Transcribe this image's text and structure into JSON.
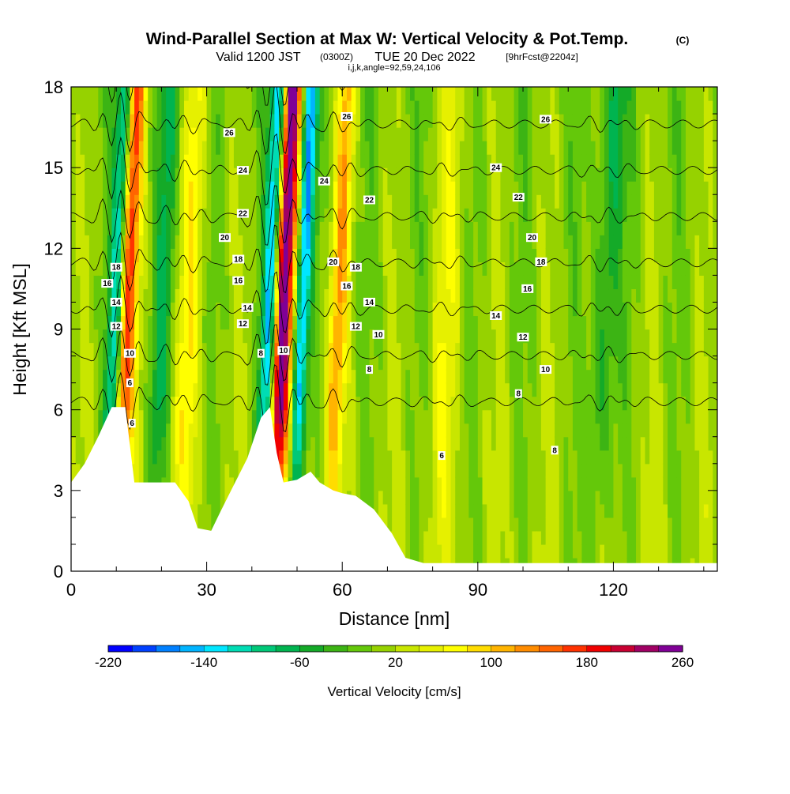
{
  "chart_data": {
    "type": "heatmap",
    "title": "Wind-Parallel Section at Max W: Vertical Velocity & Pot.Temp.",
    "title_suffix": "(C)",
    "subtitle_valid": "Valid 1200 JST",
    "subtitle_utc": "(0300Z)",
    "subtitle_date": "TUE 20 Dec 2022",
    "subtitle_fcst": "[9hrFcst@2204z]",
    "subtitle_index": "i,j,k,angle=92,59,24,106",
    "xlabel": "Distance [nm]",
    "ylabel": "Height [Kft MSL]",
    "xlim": [
      0,
      143
    ],
    "ylim": [
      0,
      18
    ],
    "x_ticks": [
      "0",
      "30",
      "60",
      "90",
      "120"
    ],
    "x_tick_values": [
      0,
      30,
      60,
      90,
      120
    ],
    "y_ticks": [
      "0",
      "3",
      "6",
      "9",
      "12",
      "15",
      "18"
    ],
    "y_tick_values": [
      0,
      3,
      6,
      9,
      12,
      15,
      18
    ],
    "colorbar": {
      "label": "Vertical Velocity [cm/s]",
      "min": -220,
      "max": 260,
      "step": 20,
      "tick_labels": [
        "-220",
        "-140",
        "-60",
        "20",
        "100",
        "180",
        "260"
      ],
      "tick_values": [
        -220,
        -140,
        -60,
        20,
        100,
        180,
        260
      ],
      "colors": [
        "#0000ff",
        "#0040ff",
        "#0080ff",
        "#00b4ff",
        "#00e6ff",
        "#00dcb4",
        "#00c878",
        "#00b450",
        "#14aa28",
        "#3cb414",
        "#64c80a",
        "#96d200",
        "#c8e600",
        "#e6f000",
        "#ffff00",
        "#ffdc00",
        "#ffb400",
        "#ff8c00",
        "#ff6400",
        "#ff3200",
        "#f00000",
        "#c80032",
        "#a00064",
        "#800096"
      ]
    },
    "terrain_kft": [
      [
        0,
        3.3
      ],
      [
        3,
        4
      ],
      [
        6,
        5
      ],
      [
        9,
        6.1
      ],
      [
        12,
        6.1
      ],
      [
        14,
        3.3
      ],
      [
        16,
        3.3
      ],
      [
        20,
        3.3
      ],
      [
        23,
        3.3
      ],
      [
        26,
        2.6
      ],
      [
        28,
        1.6
      ],
      [
        31,
        1.5
      ],
      [
        33,
        2.2
      ],
      [
        36,
        3.2
      ],
      [
        39,
        4.2
      ],
      [
        42,
        5.7
      ],
      [
        44,
        6.1
      ],
      [
        45.5,
        4.4
      ],
      [
        47,
        3.3
      ],
      [
        50,
        3.4
      ],
      [
        53,
        3.7
      ],
      [
        55,
        3.3
      ],
      [
        58,
        3.0
      ],
      [
        60,
        2.9
      ],
      [
        63,
        2.8
      ],
      [
        67,
        2.3
      ],
      [
        71,
        1.4
      ],
      [
        74,
        0.5
      ],
      [
        78,
        0.3
      ],
      [
        143,
        0.3
      ]
    ],
    "updraft_cores": [
      {
        "x": 12,
        "w": 2.2,
        "z_top": 18,
        "value": 180
      },
      {
        "x": 46.5,
        "w": 2.4,
        "z_top": 18,
        "value": 260
      },
      {
        "x": 59,
        "w": 2.0,
        "z_top": 18,
        "value": 100
      },
      {
        "x": 26,
        "w": 2.6,
        "z_top": 18,
        "value": 60
      },
      {
        "x": 83,
        "w": 3.2,
        "z_top": 18,
        "value": 40
      }
    ],
    "downdraft_cores": [
      {
        "x": 10,
        "w": 1.8,
        "z_top": 18,
        "value": -160
      },
      {
        "x": 44,
        "w": 1.8,
        "z_top": 18,
        "value": -200
      },
      {
        "x": 51,
        "w": 1.6,
        "z_top": 18,
        "value": -160
      },
      {
        "x": 20,
        "w": 2.2,
        "z_top": 18,
        "value": -60
      },
      {
        "x": 118,
        "w": 3.0,
        "z_top": 18,
        "value": -60
      }
    ],
    "contour_levels_c": [
      6,
      8,
      10,
      12,
      14,
      16,
      18,
      20,
      22,
      24,
      26
    ],
    "contour_labels": [
      {
        "text": "26",
        "x": 35,
        "y": 16.3
      },
      {
        "text": "24",
        "x": 38,
        "y": 14.9
      },
      {
        "text": "22",
        "x": 38,
        "y": 13.3
      },
      {
        "text": "20",
        "x": 34,
        "y": 12.4
      },
      {
        "text": "18",
        "x": 37,
        "y": 11.6
      },
      {
        "text": "16",
        "x": 37,
        "y": 10.8
      },
      {
        "text": "14",
        "x": 39,
        "y": 9.8
      },
      {
        "text": "12",
        "x": 38,
        "y": 9.2
      },
      {
        "text": "8",
        "x": 42,
        "y": 8.1
      },
      {
        "text": "10",
        "x": 47,
        "y": 8.2
      },
      {
        "text": "18",
        "x": 10,
        "y": 11.3
      },
      {
        "text": "16",
        "x": 8,
        "y": 10.7
      },
      {
        "text": "14",
        "x": 10,
        "y": 10.0
      },
      {
        "text": "12",
        "x": 10,
        "y": 9.1
      },
      {
        "text": "10",
        "x": 13,
        "y": 8.1
      },
      {
        "text": "6",
        "x": 13,
        "y": 7.0
      },
      {
        "text": "6",
        "x": 13.5,
        "y": 5.5
      },
      {
        "text": "26",
        "x": 61,
        "y": 16.9
      },
      {
        "text": "24",
        "x": 56,
        "y": 14.5
      },
      {
        "text": "22",
        "x": 66,
        "y": 13.8
      },
      {
        "text": "20",
        "x": 58,
        "y": 11.5
      },
      {
        "text": "18",
        "x": 63,
        "y": 11.3
      },
      {
        "text": "16",
        "x": 61,
        "y": 10.6
      },
      {
        "text": "14",
        "x": 66,
        "y": 10.0
      },
      {
        "text": "12",
        "x": 63,
        "y": 9.1
      },
      {
        "text": "10",
        "x": 68,
        "y": 8.8
      },
      {
        "text": "8",
        "x": 66,
        "y": 7.5
      },
      {
        "text": "26",
        "x": 105,
        "y": 16.8
      },
      {
        "text": "24",
        "x": 94,
        "y": 15.0
      },
      {
        "text": "22",
        "x": 99,
        "y": 13.9
      },
      {
        "text": "20",
        "x": 102,
        "y": 12.4
      },
      {
        "text": "18",
        "x": 104,
        "y": 11.5
      },
      {
        "text": "16",
        "x": 101,
        "y": 10.5
      },
      {
        "text": "14",
        "x": 94,
        "y": 9.5
      },
      {
        "text": "12",
        "x": 100,
        "y": 8.7
      },
      {
        "text": "10",
        "x": 105,
        "y": 7.5
      },
      {
        "text": "8",
        "x": 99,
        "y": 6.6
      },
      {
        "text": "8",
        "x": 107,
        "y": 4.5
      },
      {
        "text": "6",
        "x": 82,
        "y": 4.3
      }
    ]
  }
}
